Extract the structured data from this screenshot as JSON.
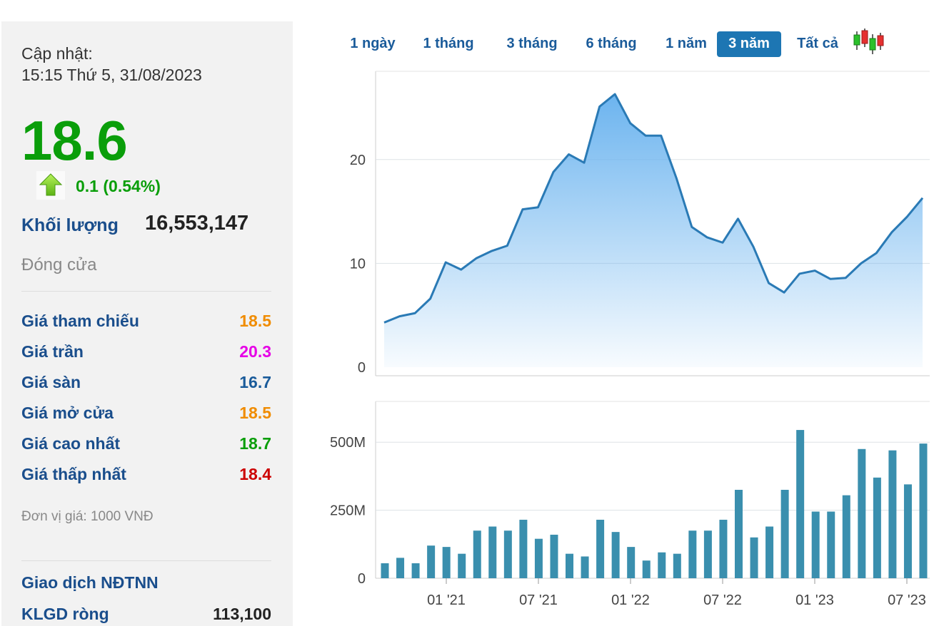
{
  "update": {
    "label": "Cập nhật:",
    "time": "15:15 Thứ 5, 31/08/2023"
  },
  "quote": {
    "price": "18.6",
    "change": "0.1 (0.54%)",
    "volume_label": "Khối lượng",
    "volume_value": "16,553,147",
    "session_status": "Đóng cửa"
  },
  "stats": [
    {
      "label": "Giá tham chiếu",
      "value": "18.5",
      "color": "#f08c00"
    },
    {
      "label": "Giá trần",
      "value": "20.3",
      "color": "#e600e6"
    },
    {
      "label": "Giá sàn",
      "value": "16.7",
      "color": "#1a5b9a"
    },
    {
      "label": "Giá mở cửa",
      "value": "18.5",
      "color": "#f08c00"
    },
    {
      "label": "Giá cao nhất",
      "value": "18.7",
      "color": "#0a9e0a"
    },
    {
      "label": "Giá thấp nhất",
      "value": "18.4",
      "color": "#cc0000"
    }
  ],
  "unit_note": "Đơn vị giá: 1000 VNĐ",
  "foreign": {
    "title": "Giao dịch NĐTNN",
    "net_label": "KLGD ròng",
    "net_value": "113,100"
  },
  "tabs": [
    {
      "label": "1 ngày",
      "active": false
    },
    {
      "label": "1 tháng",
      "active": false
    },
    {
      "label": "3 tháng",
      "active": false
    },
    {
      "label": "6 tháng",
      "active": false
    },
    {
      "label": "1 năm",
      "active": false
    },
    {
      "label": "3 năm",
      "active": true
    },
    {
      "label": "Tất cả",
      "active": false
    }
  ],
  "icons": {
    "trend": "arrow-up-icon",
    "chart_mode": "candlestick-icon"
  },
  "colors": {
    "line": "#2a7ab5",
    "area_top": "#6cb4ef",
    "bar": "#3a8fae",
    "up": "#0a9e0a"
  },
  "chart_data": [
    {
      "type": "area",
      "y_ticks": [
        "0",
        "10",
        "20"
      ],
      "ylim": [
        0,
        28.5
      ],
      "x_ticks": [
        "01 '21",
        "07 '21",
        "01 '22",
        "07 '22",
        "01 '23",
        "07 '23"
      ],
      "values": [
        4.3,
        4.9,
        5.2,
        6.6,
        10.1,
        9.4,
        10.5,
        11.2,
        11.7,
        15.2,
        15.4,
        18.8,
        20.5,
        19.7,
        25.1,
        26.3,
        23.5,
        22.3,
        22.3,
        18.2,
        13.5,
        12.5,
        12.0,
        14.3,
        11.6,
        8.1,
        7.2,
        9.0,
        9.3,
        8.5,
        8.6,
        10.0,
        11.0,
        13.0,
        14.5,
        16.3
      ]
    },
    {
      "type": "bar",
      "y_ticks": [
        "0",
        "250M",
        "500M"
      ],
      "ylim": [
        0,
        650
      ],
      "x_ticks": [
        "01 '21",
        "07 '21",
        "01 '22",
        "07 '22",
        "01 '23",
        "07 '23"
      ],
      "values": [
        55,
        75,
        55,
        120,
        115,
        90,
        175,
        190,
        175,
        215,
        145,
        160,
        90,
        80,
        215,
        170,
        115,
        65,
        95,
        90,
        175,
        175,
        215,
        325,
        150,
        190,
        325,
        545,
        245,
        245,
        305,
        475,
        370,
        470,
        345,
        495
      ]
    }
  ]
}
